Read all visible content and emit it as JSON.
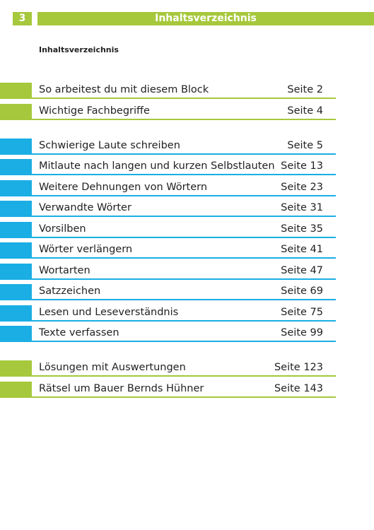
{
  "header": {
    "page_number": "3",
    "title": "Inhaltsverzeichnis"
  },
  "subtitle": "Inhaltsverzeichnis",
  "sections": [
    {
      "entries": [
        {
          "title": "So arbeitest du mit diesem Block",
          "page": "Seite 2"
        },
        {
          "title": "Wichtige Fachbegriffe",
          "page": "Seite 4"
        }
      ]
    },
    {
      "entries": [
        {
          "title": "Schwierige Laute schreiben",
          "page": "Seite 5"
        },
        {
          "title": "Mitlaute nach langen und kurzen Selbstlauten",
          "page": "Seite 13"
        },
        {
          "title": "Weitere Dehnungen von Wörtern",
          "page": "Seite 23"
        },
        {
          "title": "Verwandte Wörter",
          "page": "Seite 31"
        },
        {
          "title": "Vorsilben",
          "page": "Seite 35"
        },
        {
          "title": "Wörter verlängern",
          "page": "Seite 41"
        },
        {
          "title": "Wortarten",
          "page": "Seite 47"
        },
        {
          "title": "Satzzeichen",
          "page": "Seite 69"
        },
        {
          "title": "Lesen und Leseverständnis",
          "page": "Seite 75"
        },
        {
          "title": "Texte verfassen",
          "page": "Seite 99"
        }
      ]
    },
    {
      "entries": [
        {
          "title": "Lösungen mit Auswertungen",
          "page": "Seite 123"
        },
        {
          "title": "Rätsel um Bauer Bernds Hühner",
          "page": "Seite 143"
        }
      ]
    }
  ]
}
